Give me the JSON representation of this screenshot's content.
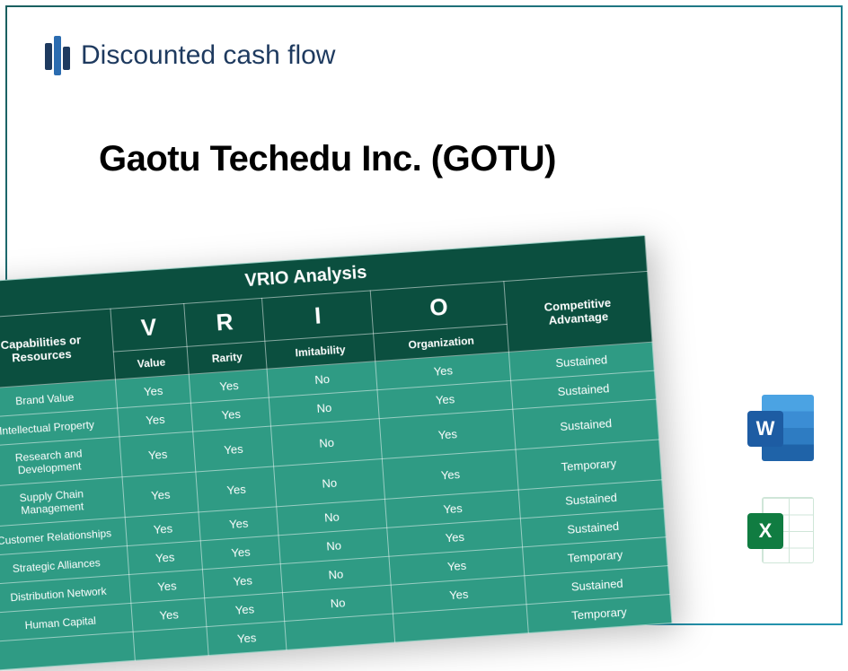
{
  "brand": "Discounted cash flow",
  "title": "Gaotu Techedu Inc. (GOTU)",
  "table": {
    "title": "VRIO Analysis",
    "resource_header": "Capabilities or Resources",
    "ca_header": "Competitive Advantage",
    "letters": [
      "V",
      "R",
      "I",
      "O"
    ],
    "sublabels": [
      "Value",
      "Rarity",
      "Imitability",
      "Organization"
    ],
    "rows": [
      {
        "label": "Brand Value",
        "v": "Yes",
        "r": "Yes",
        "i": "No",
        "o": "Yes",
        "ca": "Sustained"
      },
      {
        "label": "Intellectual Property",
        "v": "Yes",
        "r": "Yes",
        "i": "No",
        "o": "Yes",
        "ca": "Sustained"
      },
      {
        "label": "Research and Development",
        "v": "Yes",
        "r": "Yes",
        "i": "No",
        "o": "Yes",
        "ca": "Sustained"
      },
      {
        "label": "Supply Chain Management",
        "v": "Yes",
        "r": "Yes",
        "i": "No",
        "o": "Yes",
        "ca": "Temporary"
      },
      {
        "label": "Customer Relationships",
        "v": "Yes",
        "r": "Yes",
        "i": "No",
        "o": "Yes",
        "ca": "Sustained"
      },
      {
        "label": "Strategic Alliances",
        "v": "Yes",
        "r": "Yes",
        "i": "No",
        "o": "Yes",
        "ca": "Sustained"
      },
      {
        "label": "Distribution Network",
        "v": "Yes",
        "r": "Yes",
        "i": "No",
        "o": "Yes",
        "ca": "Temporary"
      },
      {
        "label": "Human Capital",
        "v": "Yes",
        "r": "Yes",
        "i": "No",
        "o": "Yes",
        "ca": "Sustained"
      },
      {
        "label": "",
        "v": "",
        "r": "Yes",
        "i": "",
        "o": "",
        "ca": "Temporary"
      }
    ]
  },
  "icons": {
    "word": "W",
    "excel": "X"
  },
  "colors": {
    "header_bg": "#0b4f3f",
    "body_bg": "#2f9b84",
    "border": "#ffffff"
  }
}
